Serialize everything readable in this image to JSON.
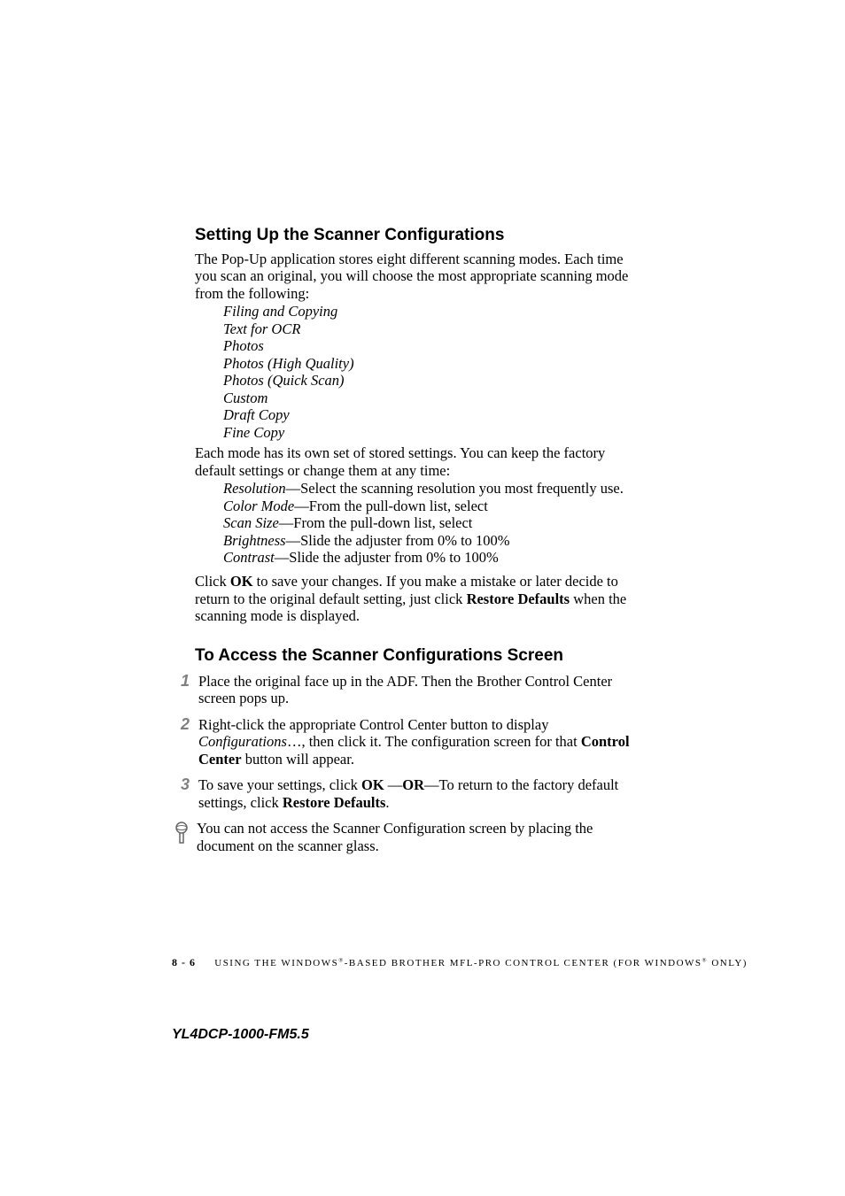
{
  "section1": {
    "heading": "Setting Up the Scanner Configurations",
    "intro1": "The Pop-Up application stores eight different scanning modes. Each time you scan an original, you will choose the most appropriate scanning mode from the following:",
    "modes": [
      "Filing and Copying",
      "Text for OCR",
      "Photos",
      "Photos (High Quality)",
      "Photos (Quick Scan)",
      "Custom",
      "Draft Copy",
      "Fine Copy"
    ],
    "intro2": "Each mode has its own set of stored settings. You can keep the factory default settings or change them at any time:",
    "settings": [
      {
        "term": "Resolution",
        "desc": "—Select the scanning resolution you most frequently use."
      },
      {
        "term": "Color Mode",
        "desc": "—From the pull-down list, select"
      },
      {
        "term": "Scan Size",
        "desc": "—From the pull-down list, select"
      },
      {
        "term": "Brightness",
        "desc": "—Slide the adjuster from 0% to 100%"
      },
      {
        "term": "Contrast",
        "desc": "—Slide the adjuster from 0% to 100%"
      }
    ],
    "click_pre": "Click ",
    "click_ok": "OK",
    "click_mid": " to save your changes. If you make a mistake or later decide to return to the original default setting, just click ",
    "click_restore": "Restore Defaults",
    "click_end": " when the scanning mode is displayed."
  },
  "section2": {
    "heading": "To Access the Scanner Configurations Screen",
    "steps": [
      {
        "num": "1",
        "parts": [
          {
            "t": "Place the original face up in the ADF. Then the Brother Control Center screen pops up."
          }
        ]
      },
      {
        "num": "2",
        "parts": [
          {
            "t": "Right-click the appropriate Control Center button to display "
          },
          {
            "t": "Configurations",
            "italic": true
          },
          {
            "t": "…, then click it. The configuration screen for that "
          },
          {
            "t": "Control Center",
            "bold": true
          },
          {
            "t": " button will appear."
          }
        ]
      },
      {
        "num": "3",
        "parts": [
          {
            "t": "To save your settings, click "
          },
          {
            "t": "OK",
            "bold": true
          },
          {
            "t": " —"
          },
          {
            "t": "OR",
            "bold": true
          },
          {
            "t": "—To return to the factory default settings, click "
          },
          {
            "t": "Restore Defaults",
            "bold": true
          },
          {
            "t": "."
          }
        ]
      }
    ],
    "note": "You can not access the Scanner Configuration screen by placing the document on the scanner glass."
  },
  "footer": {
    "page": "8 - 6",
    "chapter_pre": "USING THE WINDOWS",
    "chapter_mid": "-BASED BROTHER MFL-PRO CONTROL CENTER (FOR WINDOWS",
    "chapter_end": " ONLY)",
    "product": "YL4DCP-1000-FM5.5"
  },
  "colors": {
    "step_num": "#808080",
    "icon_stroke": "#666666",
    "text": "#000000"
  }
}
